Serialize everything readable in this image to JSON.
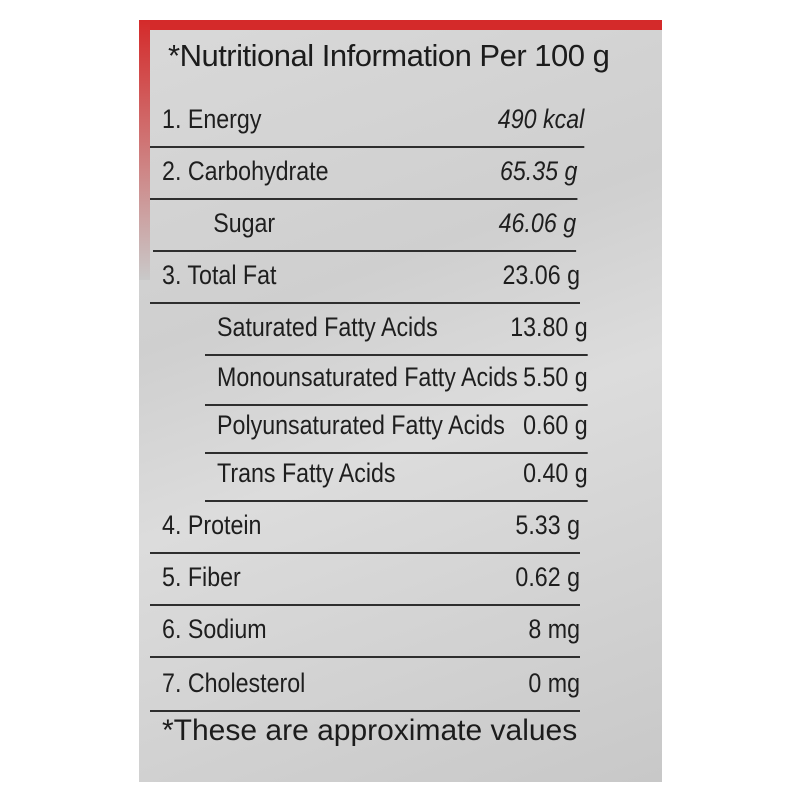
{
  "colors": {
    "label_background": "#d0d0d0",
    "border_red": "#d42a2a",
    "text": "#1e1e1e"
  },
  "title": "*Nutritional Information Per 100 g",
  "rows": [
    {
      "name": "1. Energy",
      "value": "490 kcal",
      "sub": false
    },
    {
      "name": "2. Carbohydrate",
      "value": "65.35 g",
      "sub": false
    },
    {
      "name": "Sugar",
      "value": "46.06 g",
      "sub": true
    },
    {
      "name": "3. Total Fat",
      "value": "23.06 g",
      "sub": false
    },
    {
      "name": "Saturated Fatty Acids",
      "value": "13.80 g",
      "sub": true
    },
    {
      "name": "Monounsaturated Fatty Acids",
      "value": "5.50 g",
      "sub": true
    },
    {
      "name": "Polyunsaturated Fatty Acids",
      "value": "0.60 g",
      "sub": true
    },
    {
      "name": "Trans Fatty Acids",
      "value": "0.40 g",
      "sub": true
    },
    {
      "name": "4. Protein",
      "value": "5.33 g",
      "sub": false
    },
    {
      "name": "5. Fiber",
      "value": "0.62 g",
      "sub": false
    },
    {
      "name": "6. Sodium",
      "value": "8 mg",
      "sub": false
    },
    {
      "name": "7. Cholesterol",
      "value": "0 mg",
      "sub": false
    }
  ],
  "footnote": "*These are approximate values"
}
